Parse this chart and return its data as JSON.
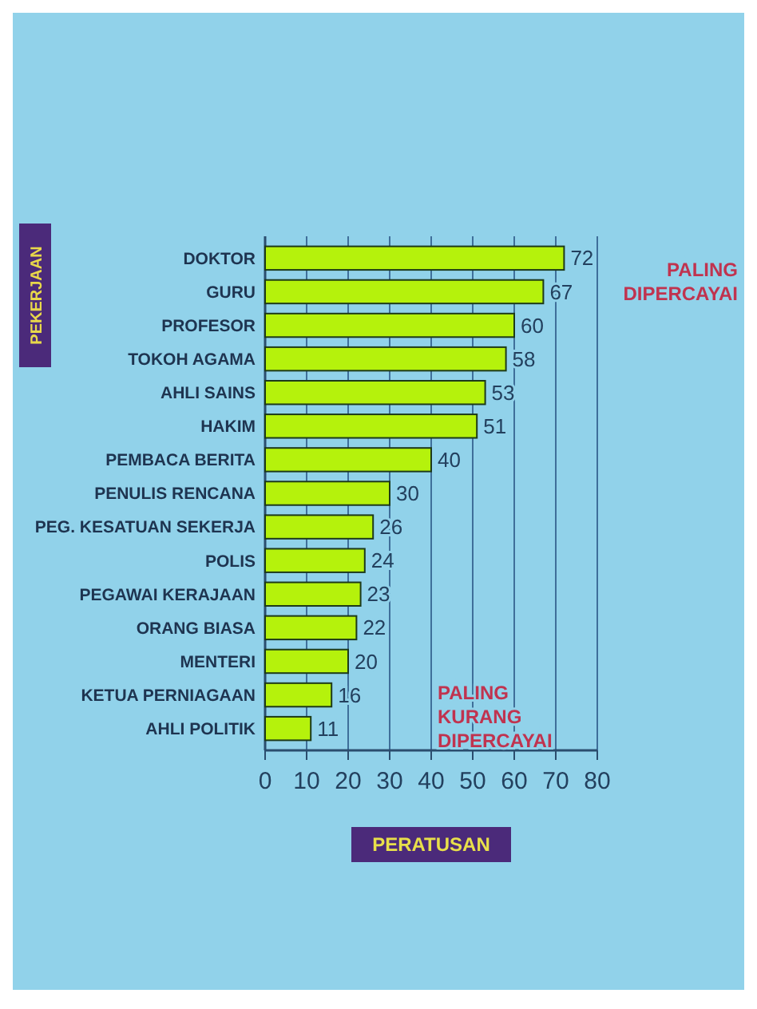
{
  "chart_data": {
    "type": "bar",
    "orientation": "horizontal",
    "xlabel": "PERATUSAN",
    "ylabel": "PEKERJAAN",
    "categories": [
      "DOKTOR",
      "GURU",
      "PROFESOR",
      "TOKOH AGAMA",
      "AHLI SAINS",
      "HAKIM",
      "PEMBACA BERITA",
      "PENULIS RENCANA",
      "PEG. KESATUAN SEKERJA",
      "POLIS",
      "PEGAWAI KERAJAAN",
      "ORANG BIASA",
      "MENTERI",
      "KETUA PERNIAGAAN",
      "AHLI POLITIK"
    ],
    "values": [
      72,
      67,
      60,
      58,
      53,
      51,
      40,
      30,
      26,
      24,
      23,
      22,
      20,
      16,
      11
    ],
    "color": "#b5f20c",
    "xlim": [
      0,
      80
    ],
    "xticks": [
      0,
      10,
      20,
      30,
      40,
      50,
      60,
      70,
      80
    ],
    "grid": "x",
    "data_labels": true,
    "annotations": [
      "PALING DIPERCAYAI",
      "PALING KURANG DIPERCAYAI"
    ]
  }
}
